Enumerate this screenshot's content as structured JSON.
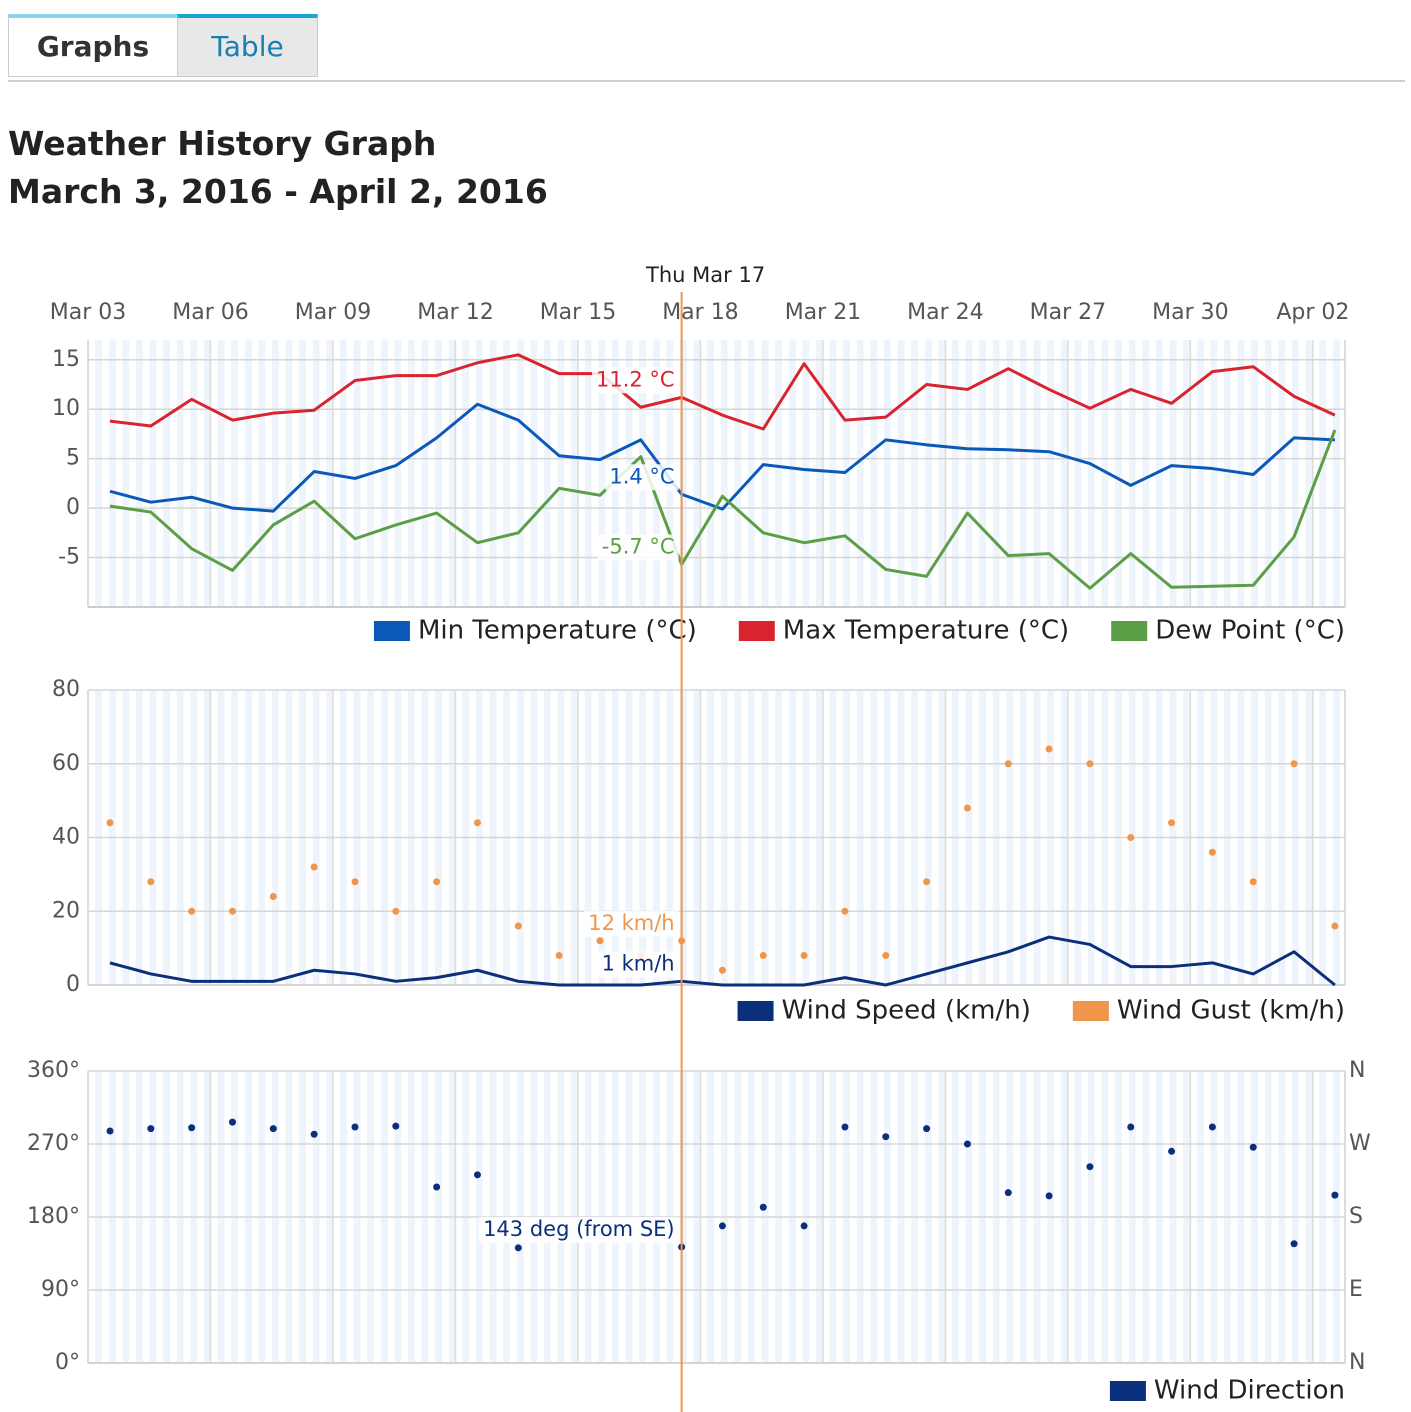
{
  "tabs": [
    "Graphs",
    "Table"
  ],
  "header": {
    "title": "Weather History Graph",
    "subtitle": "March 3, 2016 - April 2, 2016"
  },
  "chart_data": [
    {
      "type": "line",
      "hover_label": "Thu Mar 17",
      "categories": [
        "Mar 03",
        null,
        null,
        "Mar 06",
        null,
        null,
        "Mar 09",
        null,
        null,
        "Mar 12",
        null,
        null,
        "Mar 15",
        null,
        null,
        "Mar 18",
        null,
        null,
        "Mar 21",
        null,
        null,
        "Mar 24",
        null,
        null,
        "Mar 27",
        null,
        null,
        "Mar 30",
        null,
        null,
        "Apr 02"
      ],
      "ylim": [
        -10,
        17
      ],
      "yticks": [
        15,
        10,
        5,
        0,
        -5
      ],
      "grid": true,
      "series": [
        {
          "name": "Min Temperature (°C)",
          "color": "#0a59b8",
          "values": [
            1.7,
            0.6,
            1.1,
            0.0,
            -0.3,
            3.7,
            3.0,
            4.3,
            7.1,
            10.5,
            8.9,
            5.3,
            4.9,
            6.9,
            1.4,
            -0.1,
            4.4,
            3.9,
            3.6,
            6.9,
            6.4,
            6.0,
            5.9,
            5.7,
            4.5,
            2.3,
            4.3,
            4.0,
            3.4,
            7.1,
            6.9
          ],
          "value_labels": [
            null,
            null,
            null,
            null,
            null,
            null,
            null,
            null,
            null,
            null,
            null,
            null,
            null,
            null,
            "1.4 °C",
            null,
            null,
            null,
            null,
            null,
            null,
            null,
            null,
            null,
            null,
            null,
            null,
            null,
            null,
            null,
            null
          ]
        },
        {
          "name": "Max Temperature (°C)",
          "color": "#d9232e",
          "values": [
            8.8,
            8.3,
            11.0,
            8.9,
            9.6,
            9.9,
            12.9,
            13.4,
            13.4,
            14.7,
            15.5,
            13.6,
            13.6,
            10.2,
            11.2,
            9.4,
            8.0,
            14.6,
            8.9,
            9.2,
            12.5,
            12.0,
            14.1,
            12.0,
            10.1,
            12.0,
            10.6,
            13.8,
            14.3,
            11.3,
            9.4
          ],
          "value_labels": [
            null,
            null,
            null,
            null,
            null,
            null,
            null,
            null,
            null,
            null,
            null,
            null,
            null,
            null,
            "11.2 °C",
            null,
            null,
            null,
            null,
            null,
            null,
            null,
            null,
            null,
            null,
            null,
            null,
            null,
            null,
            null,
            null
          ]
        },
        {
          "name": "Dew Point (°C)",
          "color": "#5b9e45",
          "values": [
            0.2,
            -0.4,
            -4.1,
            -6.3,
            -1.7,
            0.7,
            -3.1,
            -1.7,
            -0.5,
            -3.5,
            -2.5,
            2.0,
            1.3,
            5.2,
            -5.7,
            1.2,
            -2.5,
            -3.5,
            -2.8,
            -6.2,
            -6.9,
            -0.5,
            -4.8,
            -4.6,
            -8.1,
            -4.6,
            -8.0,
            -7.9,
            -7.8,
            -2.9,
            7.9
          ],
          "value_labels": [
            null,
            null,
            null,
            null,
            null,
            null,
            null,
            null,
            null,
            null,
            null,
            null,
            null,
            null,
            "-5.7 °C",
            null,
            null,
            null,
            null,
            null,
            null,
            null,
            null,
            null,
            null,
            null,
            null,
            null,
            null,
            null,
            null
          ]
        }
      ]
    },
    {
      "type": "line",
      "ylim": [
        0,
        80
      ],
      "yticks": [
        80,
        60,
        40,
        20,
        0
      ],
      "grid": true,
      "series": [
        {
          "name": "Wind Speed (km/h)",
          "color": "#0b2f7a",
          "values": [
            6,
            3,
            1,
            1,
            1,
            4,
            3,
            1,
            2,
            4,
            1,
            0,
            0,
            0,
            1,
            0,
            0,
            0,
            2,
            0,
            3,
            6,
            9,
            13,
            11,
            5,
            5,
            6,
            3,
            9,
            0
          ],
          "value_labels": [
            null,
            null,
            null,
            null,
            null,
            null,
            null,
            null,
            null,
            null,
            null,
            null,
            null,
            null,
            "1 km/h",
            null,
            null,
            null,
            null,
            null,
            null,
            null,
            null,
            null,
            null,
            null,
            null,
            null,
            null,
            null,
            null
          ]
        },
        {
          "name": "Wind Gust (km/h)",
          "color": "#f0964a",
          "type": "scatter",
          "values": [
            44,
            28,
            20,
            20,
            24,
            32,
            28,
            20,
            28,
            44,
            16,
            8,
            12,
            8,
            12,
            4,
            8,
            8,
            20,
            8,
            28,
            48,
            60,
            64,
            60,
            40,
            44,
            36,
            28,
            60,
            16
          ],
          "value_labels": [
            null,
            null,
            null,
            null,
            null,
            null,
            null,
            null,
            null,
            null,
            null,
            null,
            null,
            null,
            "12 km/h",
            null,
            null,
            null,
            null,
            null,
            null,
            null,
            null,
            null,
            null,
            null,
            null,
            null,
            null,
            null,
            null
          ]
        }
      ]
    },
    {
      "type": "scatter",
      "ylim": [
        0,
        360
      ],
      "yticks": [
        {
          "value": 360,
          "label": "360°"
        },
        {
          "value": 270,
          "label": "270°"
        },
        {
          "value": 180,
          "label": "180°"
        },
        {
          "value": 90,
          "label": "90°"
        },
        {
          "value": 0,
          "label": "0°"
        }
      ],
      "y2lim": [
        0,
        360
      ],
      "y2ticks": [
        {
          "value": 360,
          "label": "N"
        },
        {
          "value": 270,
          "label": "W"
        },
        {
          "value": 180,
          "label": "S"
        },
        {
          "value": 90,
          "label": "E"
        },
        {
          "value": 0,
          "label": "N"
        }
      ],
      "grid": true,
      "series": [
        {
          "name": "Wind Direction",
          "color": "#0b2f7a",
          "values": [
            286,
            289,
            290,
            297,
            289,
            282,
            291,
            292,
            217,
            232,
            142,
            null,
            null,
            null,
            143,
            169,
            192,
            169,
            291,
            279,
            289,
            270,
            210,
            206,
            242,
            291,
            261,
            291,
            266,
            147,
            207
          ],
          "value_labels": [
            null,
            null,
            null,
            null,
            null,
            null,
            null,
            null,
            null,
            null,
            null,
            null,
            null,
            null,
            "143 deg (from SE)",
            null,
            null,
            null,
            null,
            null,
            null,
            null,
            null,
            null,
            null,
            null,
            null,
            null,
            null,
            null,
            null
          ]
        }
      ]
    }
  ]
}
